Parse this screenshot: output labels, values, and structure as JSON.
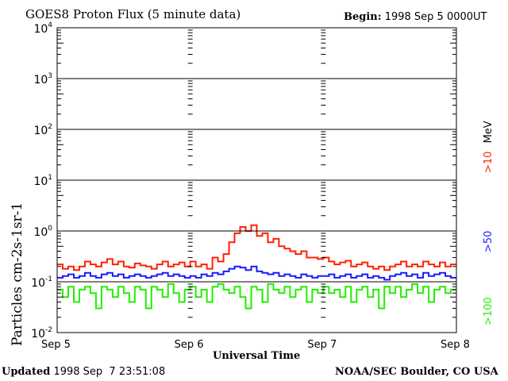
{
  "chart_data": {
    "type": "line",
    "title": "GOES8 Proton Flux (5 minute data)",
    "begin_label": "Begin:",
    "begin_value": "1998 Sep 5 0000UT",
    "ylabel": "Particles cm-2s-1sr-1",
    "xlabel": "Universal Time",
    "yscale": "log",
    "ylim": [
      0.01,
      10000
    ],
    "y_ticks": [
      {
        "base": "10",
        "exp": "4",
        "value": 10000
      },
      {
        "base": "10",
        "exp": "3",
        "value": 1000
      },
      {
        "base": "10",
        "exp": "2",
        "value": 100
      },
      {
        "base": "10",
        "exp": "1",
        "value": 10
      },
      {
        "base": "10",
        "exp": "0",
        "value": 1
      },
      {
        "base": "10",
        "exp": "-1",
        "value": 0.1
      },
      {
        "base": "10",
        "exp": "-2",
        "value": 0.01
      }
    ],
    "x_ticks": [
      "Sep 5",
      "Sep 6",
      "Sep 7",
      "Sep 8"
    ],
    "x_unit": "hours since 1998 Sep 5 0000UT",
    "xlim": [
      0,
      72
    ],
    "grid": true,
    "legend_placement": "right",
    "series": [
      {
        "name": ">10 MeV",
        "label_main": ">10",
        "label_unit": "MeV",
        "color": "#ff2000",
        "values": [
          0.22,
          0.18,
          0.2,
          0.17,
          0.2,
          0.25,
          0.22,
          0.2,
          0.24,
          0.28,
          0.22,
          0.25,
          0.2,
          0.19,
          0.23,
          0.21,
          0.2,
          0.18,
          0.22,
          0.25,
          0.2,
          0.22,
          0.24,
          0.2,
          0.25,
          0.2,
          0.22,
          0.18,
          0.3,
          0.25,
          0.35,
          0.6,
          0.9,
          1.2,
          1.0,
          1.3,
          0.8,
          0.9,
          0.6,
          0.7,
          0.5,
          0.45,
          0.4,
          0.35,
          0.4,
          0.3,
          0.3,
          0.28,
          0.3,
          0.25,
          0.22,
          0.24,
          0.26,
          0.2,
          0.22,
          0.24,
          0.2,
          0.18,
          0.2,
          0.17,
          0.2,
          0.22,
          0.25,
          0.2,
          0.22,
          0.2,
          0.25,
          0.22,
          0.2,
          0.24,
          0.2,
          0.22
        ]
      },
      {
        "name": ">50",
        "label_main": ">50",
        "color": "#1a1aff",
        "values": [
          0.12,
          0.13,
          0.14,
          0.12,
          0.13,
          0.15,
          0.13,
          0.12,
          0.14,
          0.15,
          0.13,
          0.14,
          0.12,
          0.13,
          0.14,
          0.13,
          0.12,
          0.13,
          0.14,
          0.15,
          0.13,
          0.14,
          0.13,
          0.12,
          0.13,
          0.12,
          0.14,
          0.13,
          0.15,
          0.14,
          0.16,
          0.18,
          0.2,
          0.19,
          0.17,
          0.2,
          0.16,
          0.15,
          0.14,
          0.15,
          0.13,
          0.14,
          0.13,
          0.12,
          0.14,
          0.13,
          0.12,
          0.13,
          0.13,
          0.14,
          0.12,
          0.13,
          0.14,
          0.12,
          0.13,
          0.14,
          0.12,
          0.13,
          0.12,
          0.11,
          0.13,
          0.14,
          0.15,
          0.13,
          0.14,
          0.12,
          0.15,
          0.13,
          0.14,
          0.15,
          0.13,
          0.12
        ]
      },
      {
        "name": ">100",
        "label_main": ">100",
        "color": "#22ee00",
        "values": [
          0.07,
          0.05,
          0.08,
          0.04,
          0.07,
          0.08,
          0.06,
          0.03,
          0.08,
          0.07,
          0.05,
          0.08,
          0.06,
          0.04,
          0.08,
          0.07,
          0.03,
          0.08,
          0.07,
          0.05,
          0.09,
          0.06,
          0.04,
          0.07,
          0.08,
          0.05,
          0.07,
          0.04,
          0.08,
          0.09,
          0.07,
          0.06,
          0.08,
          0.05,
          0.03,
          0.08,
          0.07,
          0.04,
          0.09,
          0.07,
          0.06,
          0.08,
          0.05,
          0.07,
          0.08,
          0.04,
          0.07,
          0.06,
          0.08,
          0.06,
          0.07,
          0.05,
          0.08,
          0.04,
          0.07,
          0.08,
          0.05,
          0.07,
          0.03,
          0.08,
          0.06,
          0.08,
          0.05,
          0.07,
          0.09,
          0.06,
          0.08,
          0.04,
          0.07,
          0.08,
          0.06,
          0.07
        ]
      }
    ]
  },
  "footer": {
    "updated_label": "Updated",
    "updated_value": "1998 Sep  7 23:51:08",
    "credit": "NOAA/SEC Boulder, CO USA"
  }
}
